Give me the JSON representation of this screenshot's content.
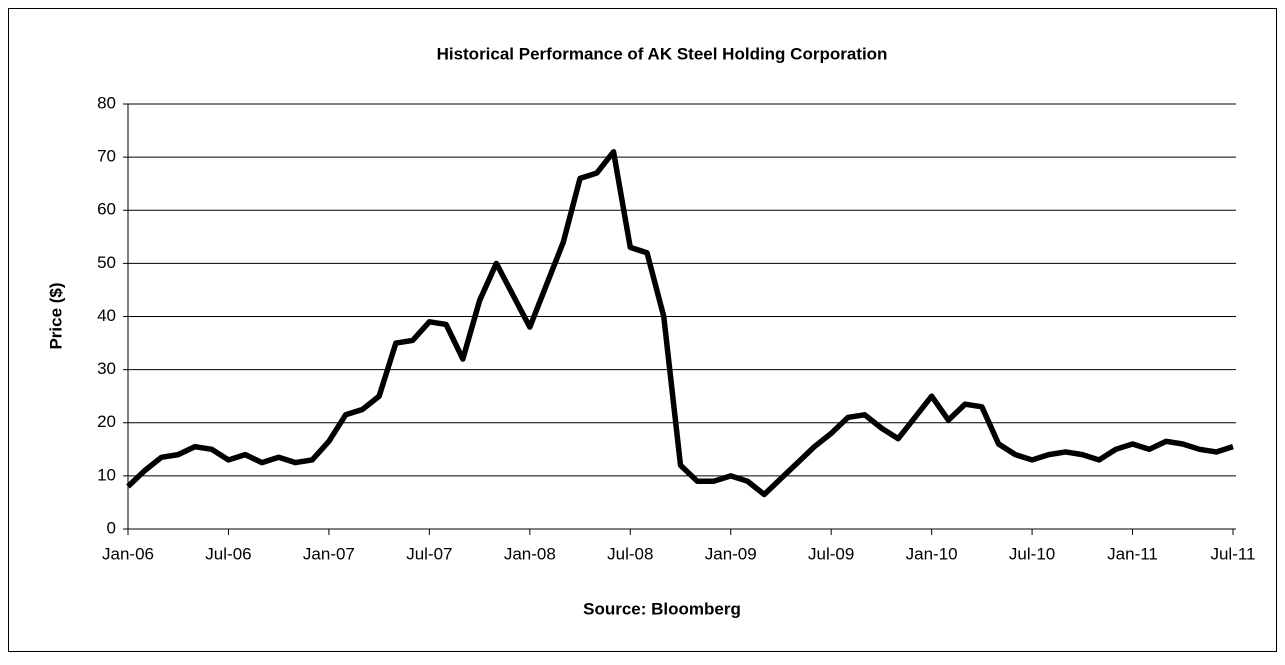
{
  "chart_data": {
    "type": "line",
    "title": "Historical Performance of AK Steel Holding Corporation",
    "x_label": "Source: Bloomberg",
    "y_label": "Price ($)",
    "x": [
      "Jan-06",
      "Feb-06",
      "Mar-06",
      "Apr-06",
      "May-06",
      "Jun-06",
      "Jul-06",
      "Aug-06",
      "Sep-06",
      "Oct-06",
      "Nov-06",
      "Dec-06",
      "Jan-07",
      "Feb-07",
      "Mar-07",
      "Apr-07",
      "May-07",
      "Jun-07",
      "Jul-07",
      "Aug-07",
      "Sep-07",
      "Oct-07",
      "Nov-07",
      "Dec-07",
      "Jan-08",
      "Feb-08",
      "Mar-08",
      "Apr-08",
      "May-08",
      "Jun-08",
      "Jul-08",
      "Aug-08",
      "Sep-08",
      "Oct-08",
      "Nov-08",
      "Dec-08",
      "Jan-09",
      "Feb-09",
      "Mar-09",
      "Apr-09",
      "May-09",
      "Jun-09",
      "Jul-09",
      "Aug-09",
      "Sep-09",
      "Oct-09",
      "Nov-09",
      "Dec-09",
      "Jan-10",
      "Feb-10",
      "Mar-10",
      "Apr-10",
      "May-10",
      "Jun-10",
      "Jul-10",
      "Aug-10",
      "Sep-10",
      "Oct-10",
      "Nov-10",
      "Dec-10",
      "Jan-11",
      "Feb-11",
      "Mar-11",
      "Apr-11",
      "May-11",
      "Jun-11",
      "Jul-11"
    ],
    "series": [
      {
        "name": "AK Steel",
        "color": "#000000",
        "values": [
          8,
          11,
          13.5,
          14,
          15.5,
          15,
          13,
          14,
          12.5,
          13.5,
          12.5,
          13,
          16.5,
          21.5,
          22.5,
          25,
          35,
          35.5,
          39,
          38.5,
          32,
          43,
          50,
          44,
          38,
          46,
          54,
          66,
          67,
          71,
          53,
          52,
          40,
          12,
          9,
          9,
          10,
          9,
          6.5,
          9.5,
          12.5,
          15.5,
          18,
          21,
          21.5,
          19,
          17,
          21,
          25,
          20.5,
          23.5,
          23,
          16,
          14,
          13,
          14,
          14.5,
          14,
          13,
          15,
          16,
          15,
          16.5,
          16,
          15,
          14.5,
          15.5
        ]
      }
    ],
    "xticks": [
      "Jan-06",
      "Jul-06",
      "Jan-07",
      "Jul-07",
      "Jan-08",
      "Jul-08",
      "Jan-09",
      "Jul-09",
      "Jan-10",
      "Jul-10",
      "Jan-11",
      "Jul-11"
    ],
    "ylim": [
      0,
      80
    ],
    "yticks": [
      0,
      10,
      20,
      30,
      40,
      50,
      60,
      70,
      80
    ],
    "grid": true
  }
}
